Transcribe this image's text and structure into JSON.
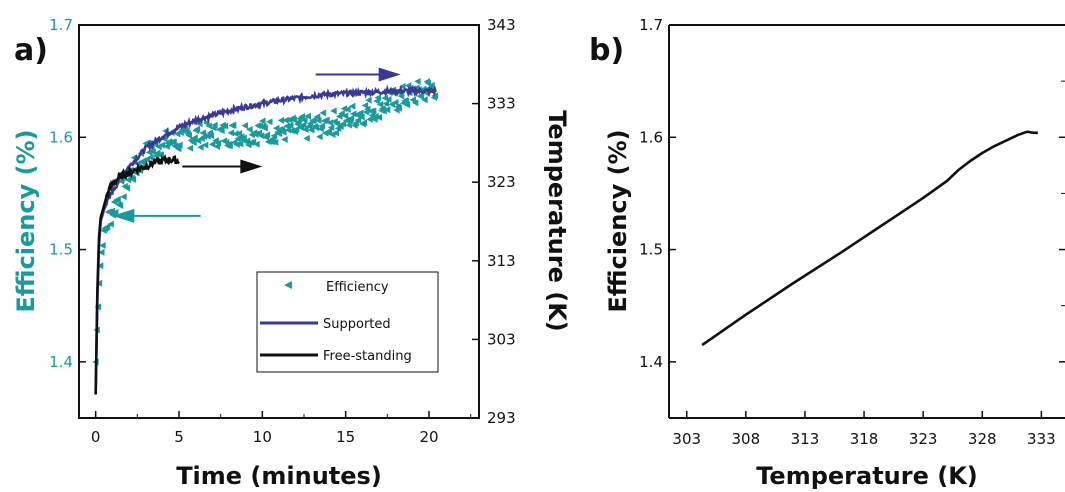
{
  "colors": {
    "efficiency": "#1a9a9c",
    "supported": "#3a3a94",
    "free_standing": "#111111",
    "axis": "#111111"
  },
  "chart_data": [
    {
      "panel": "a)",
      "type": "line",
      "xlabel": "Time (minutes)",
      "ylabel_left": "Efficiency (%)",
      "ylabel_right": "Temperature (K)",
      "xlim": [
        -1,
        23
      ],
      "ylim_left": [
        1.35,
        1.7
      ],
      "ylim_right": [
        293,
        343
      ],
      "xticks": [
        "0",
        "5",
        "10",
        "15",
        "20"
      ],
      "yticks_left": [
        "1.4",
        "1.5",
        "1.6",
        "1.7"
      ],
      "yticks_right": [
        "293",
        "303",
        "313",
        "323",
        "333",
        "343"
      ],
      "legend_position": "lower-right",
      "legend": [
        "Efficiency",
        "Supported",
        "Free-standing"
      ],
      "series": [
        {
          "name": "Efficiency",
          "axis": "left",
          "style": "scatter-left-triangle",
          "x": [
            0.0,
            0.1,
            0.2,
            0.3,
            0.4,
            0.5,
            0.7,
            1.0,
            1.5,
            2.0,
            2.5,
            3.0,
            3.5,
            4.0,
            5.0,
            6.0,
            7.0,
            8.0,
            9.0,
            10.0,
            11.0,
            12.0,
            13.0,
            14.0,
            15.0,
            16.0,
            17.0,
            18.0,
            19.0,
            20.0,
            20.4
          ],
          "y": [
            1.4,
            1.44,
            1.47,
            1.49,
            1.505,
            1.515,
            1.525,
            1.535,
            1.55,
            1.565,
            1.575,
            1.585,
            1.59,
            1.595,
            1.598,
            1.602,
            1.602,
            1.603,
            1.604,
            1.605,
            1.606,
            1.607,
            1.609,
            1.612,
            1.617,
            1.622,
            1.628,
            1.633,
            1.638,
            1.643,
            1.645
          ]
        },
        {
          "name": "Supported",
          "axis": "right",
          "x": [
            0.0,
            0.1,
            0.2,
            0.3,
            0.5,
            0.7,
            1.0,
            1.5,
            2.0,
            3.0,
            4.0,
            5.0,
            6.0,
            7.0,
            8.0,
            9.0,
            10.0,
            11.0,
            12.0,
            13.0,
            14.0,
            15.0,
            16.0,
            17.0,
            18.0,
            19.0,
            20.0,
            20.4
          ],
          "y": [
            296,
            308,
            315,
            318,
            319.5,
            320.5,
            321.8,
            323.5,
            325,
            327.3,
            328.8,
            330,
            330.9,
            331.5,
            332.1,
            332.6,
            333.0,
            333.4,
            333.7,
            334.0,
            334.2,
            334.3,
            334.4,
            334.5,
            334.6,
            334.6,
            334.6,
            334.6
          ]
        },
        {
          "name": "Free-standing",
          "axis": "right",
          "x": [
            0.0,
            0.1,
            0.2,
            0.3,
            0.5,
            0.7,
            1.0,
            1.5,
            2.0,
            2.5,
            3.0,
            3.5,
            4.0,
            4.5,
            5.0
          ],
          "y": [
            296,
            309,
            316,
            318.5,
            320,
            321.5,
            322.8,
            323.8,
            324.2,
            324.7,
            325.0,
            325.5,
            325.7,
            325.9,
            325.7
          ]
        }
      ]
    },
    {
      "panel": "b)",
      "type": "line",
      "xlabel": "Temperature (K)",
      "ylabel": "Efficiency (%)",
      "xlim": [
        301.5,
        335
      ],
      "ylim": [
        1.35,
        1.7
      ],
      "xticks": [
        "303",
        "308",
        "313",
        "318",
        "323",
        "328",
        "333"
      ],
      "yticks": [
        "1.4",
        "1.5",
        "1.6",
        "1.7"
      ],
      "series": [
        {
          "x": [
            304.3,
            308,
            312,
            316,
            320,
            323,
            325,
            326,
            327,
            328,
            329,
            330,
            331,
            331.8,
            332.3,
            332.7
          ],
          "y": [
            1.415,
            1.442,
            1.47,
            1.497,
            1.525,
            1.546,
            1.561,
            1.571,
            1.579,
            1.586,
            1.592,
            1.597,
            1.602,
            1.605,
            1.604,
            1.604
          ]
        }
      ]
    }
  ]
}
